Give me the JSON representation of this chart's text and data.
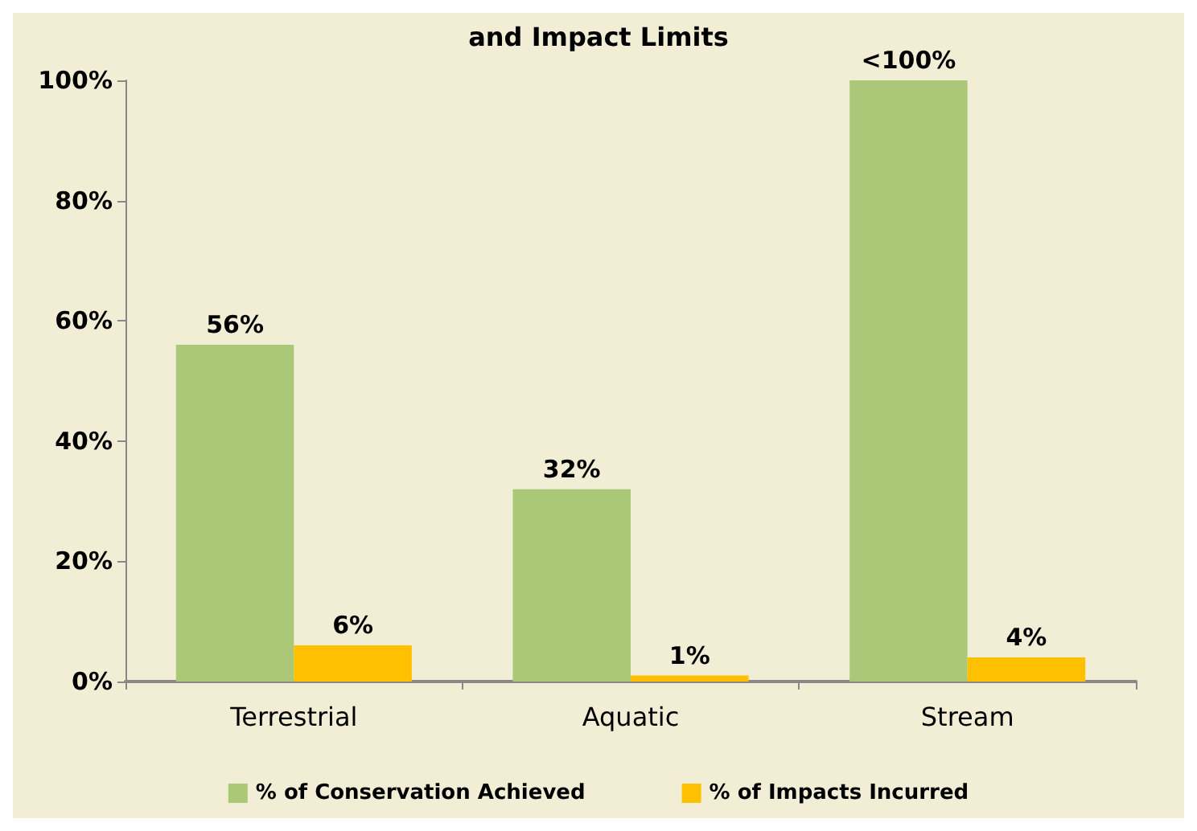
{
  "chart_data": {
    "type": "bar",
    "title": "and Impact Limits",
    "categories": [
      "Terrestrial",
      "Aquatic",
      "Stream"
    ],
    "series": [
      {
        "name": "% of Conservation Achieved",
        "color": "#abc878",
        "values": [
          56,
          32,
          100
        ],
        "value_labels": [
          "56%",
          "32%",
          "<100%"
        ]
      },
      {
        "name": "% of Impacts Incurred",
        "color": "#fec000",
        "values": [
          6,
          1,
          4
        ],
        "value_labels": [
          "6%",
          "1%",
          "4%"
        ]
      }
    ],
    "ylim": [
      0,
      100
    ],
    "yticks": [
      {
        "value": 0,
        "label": "0%"
      },
      {
        "value": 20,
        "label": "20%"
      },
      {
        "value": 40,
        "label": "40%"
      },
      {
        "value": 60,
        "label": "60%"
      },
      {
        "value": 80,
        "label": "80%"
      },
      {
        "value": 100,
        "label": "100%"
      }
    ],
    "grid": false,
    "legend": "bottom"
  }
}
